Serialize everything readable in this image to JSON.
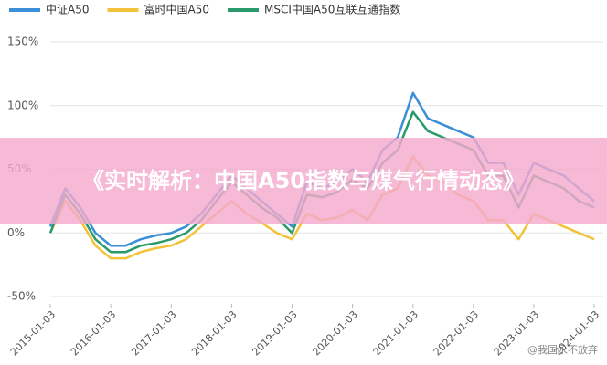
{
  "chart_data": {
    "type": "line",
    "x": [
      "2015-01-03",
      "2015-04-03",
      "2015-07-03",
      "2015-10-03",
      "2016-01-03",
      "2016-04-03",
      "2016-07-03",
      "2016-10-03",
      "2017-01-03",
      "2017-04-03",
      "2017-07-03",
      "2017-10-03",
      "2018-01-03",
      "2018-04-03",
      "2018-07-03",
      "2018-10-03",
      "2019-01-03",
      "2019-04-03",
      "2019-07-03",
      "2019-10-03",
      "2020-01-03",
      "2020-04-03",
      "2020-07-03",
      "2020-10-03",
      "2021-01-03",
      "2021-04-03",
      "2021-07-03",
      "2021-10-03",
      "2022-01-03",
      "2022-04-03",
      "2022-07-03",
      "2022-10-03",
      "2023-01-03",
      "2023-04-03",
      "2023-07-03",
      "2023-10-03",
      "2024-01-03"
    ],
    "series": [
      {
        "name": "中证A50",
        "color": "#3a8fd8",
        "values": [
          5,
          35,
          20,
          0,
          -10,
          -10,
          -5,
          -2,
          0,
          5,
          15,
          30,
          45,
          35,
          25,
          15,
          5,
          40,
          35,
          40,
          50,
          40,
          65,
          75,
          110,
          90,
          85,
          80,
          75,
          55,
          55,
          30,
          55,
          50,
          45,
          35,
          25
        ]
      },
      {
        "name": "富时中国A50",
        "color": "#f2c23a",
        "values": [
          0,
          25,
          10,
          -10,
          -20,
          -20,
          -15,
          -12,
          -10,
          -5,
          5,
          15,
          25,
          15,
          8,
          0,
          -5,
          15,
          10,
          12,
          18,
          10,
          30,
          35,
          60,
          45,
          40,
          30,
          25,
          10,
          10,
          -5,
          15,
          10,
          5,
          0,
          -5
        ]
      },
      {
        "name": "MSCI中国A50互联互通指数",
        "color": "#2a9a6a",
        "values": [
          0,
          30,
          15,
          -5,
          -15,
          -15,
          -10,
          -8,
          -5,
          0,
          10,
          25,
          40,
          30,
          20,
          12,
          0,
          30,
          28,
          32,
          42,
          35,
          55,
          65,
          95,
          80,
          75,
          70,
          65,
          45,
          45,
          20,
          45,
          40,
          35,
          25,
          20
        ]
      }
    ],
    "xticks": [
      "2015-01-03",
      "2016-01-03",
      "2017-01-03",
      "2018-01-03",
      "2019-01-03",
      "2020-01-03",
      "2021-01-03",
      "2022-01-03",
      "2023-01-03",
      "2024-01-03"
    ],
    "ylim": [
      -50,
      150
    ],
    "yticks": [
      {
        "value": -50,
        "label": "-50%"
      },
      {
        "value": 0,
        "label": "0%"
      },
      {
        "value": 50,
        "label": "50%"
      },
      {
        "value": 100,
        "label": "100%"
      },
      {
        "value": 150,
        "label": "150%"
      }
    ],
    "grid": true,
    "overlay_title": "《实时解析：中国A50指数与煤气行情动态》",
    "watermark": "@我国永不放弃"
  }
}
